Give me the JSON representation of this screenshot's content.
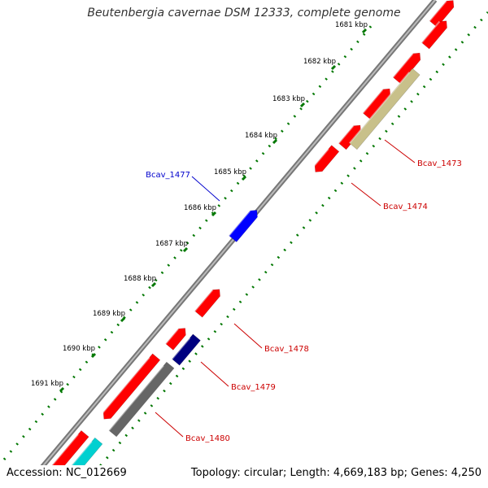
{
  "title": "Beutenbergia cavernae DSM 12333, complete genome",
  "accession": "Accession: NC_012669",
  "summary": "Topology: circular; Length: 4,669,183 bp; Genes: 4,250",
  "kbp_ticks": [
    {
      "label": "1681 kbp"
    },
    {
      "label": "1682 kbp"
    },
    {
      "label": "1683 kbp"
    },
    {
      "label": "1684 kbp"
    },
    {
      "label": "1685 kbp"
    },
    {
      "label": "1686 kbp"
    },
    {
      "label": "1687 kbp"
    },
    {
      "label": "1688 kbp"
    },
    {
      "label": "1689 kbp"
    },
    {
      "label": "1690 kbp"
    },
    {
      "label": "1691 kbp"
    }
  ],
  "gene_labels": [
    {
      "name": "Bcav_1473",
      "color": "#cc0000"
    },
    {
      "name": "Bcav_1474",
      "color": "#cc0000"
    },
    {
      "name": "Bcav_1477",
      "color": "#0000cc"
    },
    {
      "name": "Bcav_1478",
      "color": "#cc0000"
    },
    {
      "name": "Bcav_1479",
      "color": "#cc0000"
    },
    {
      "name": "Bcav_1480",
      "color": "#cc0000"
    }
  ],
  "colors": {
    "cds_forward": "#ff0000",
    "cds_reverse": "#ff0000",
    "blue_feature": "#0000ff",
    "navy_feature": "#000080",
    "olive_feature": "#c8c08a",
    "gray_feature": "#666666",
    "cyan_feature": "#00d0d0",
    "backbone": "#888888",
    "tick_green": "#007700"
  }
}
